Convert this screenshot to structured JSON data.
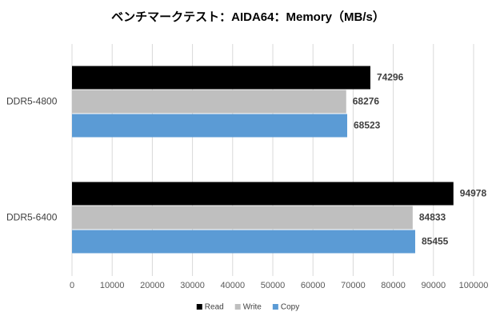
{
  "chart_data": {
    "type": "bar",
    "orientation": "horizontal",
    "title": "ベンチマークテスト：AIDA64：Memory（MB/s）",
    "categories": [
      "DDR5-4800",
      "DDR5-6400"
    ],
    "series": [
      {
        "name": "Read",
        "color": "#000000",
        "values": [
          74296,
          94978
        ]
      },
      {
        "name": "Write",
        "color": "#bfbfbf",
        "values": [
          68276,
          84833
        ]
      },
      {
        "name": "Copy",
        "color": "#5b9bd5",
        "values": [
          68523,
          85455
        ]
      }
    ],
    "xlim": [
      0,
      100000
    ],
    "xticks": [
      0,
      10000,
      20000,
      30000,
      40000,
      50000,
      60000,
      70000,
      80000,
      90000,
      100000
    ],
    "grid": true,
    "legend": "bottom"
  }
}
